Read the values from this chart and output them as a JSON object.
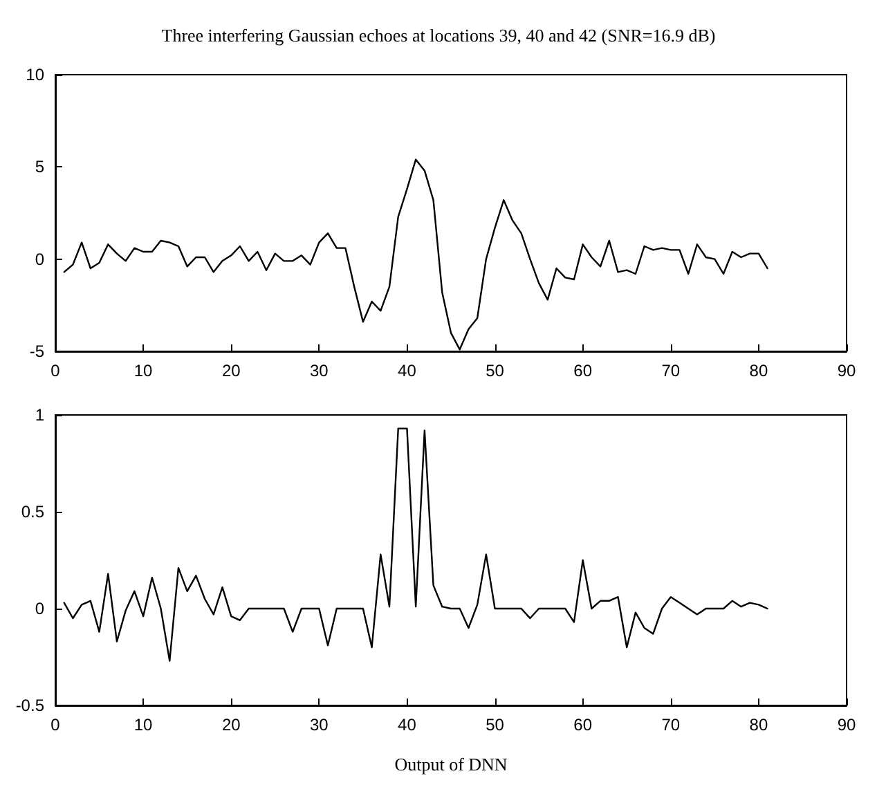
{
  "chart_data": [
    {
      "type": "line",
      "title": "Three interfering Gaussian echoes at locations 39, 40 and 42 (SNR=16.9 dB)",
      "x": [
        1,
        2,
        3,
        4,
        5,
        6,
        7,
        8,
        9,
        10,
        11,
        12,
        13,
        14,
        15,
        16,
        17,
        18,
        19,
        20,
        21,
        22,
        23,
        24,
        25,
        26,
        27,
        28,
        29,
        30,
        31,
        32,
        33,
        34,
        35,
        36,
        37,
        38,
        39,
        40,
        41,
        42,
        43,
        44,
        45,
        46,
        47,
        48,
        49,
        50,
        51,
        52,
        53,
        54,
        55,
        56,
        57,
        58,
        59,
        60,
        61,
        62,
        63,
        64,
        65,
        66,
        67,
        68,
        69,
        70,
        71,
        72,
        73,
        74,
        75,
        76,
        77,
        78,
        79,
        80,
        81
      ],
      "series": [
        {
          "color": "#000000",
          "values": [
            -0.7,
            -0.3,
            0.9,
            -0.5,
            -0.2,
            0.8,
            0.3,
            -0.1,
            0.6,
            0.4,
            0.4,
            1.0,
            0.9,
            0.7,
            -0.4,
            0.1,
            0.1,
            -0.7,
            -0.1,
            0.2,
            0.7,
            -0.1,
            0.4,
            -0.6,
            0.3,
            -0.1,
            -0.1,
            0.2,
            -0.3,
            0.9,
            1.4,
            0.6,
            0.6,
            -1.5,
            -3.4,
            -2.3,
            -2.8,
            -1.5,
            2.3,
            3.8,
            5.4,
            4.8,
            3.2,
            -1.8,
            -4.0,
            -4.9,
            -3.8,
            -3.2,
            0.0,
            1.7,
            3.2,
            2.1,
            1.4,
            0.0,
            -1.3,
            -2.2,
            -0.5,
            -1.0,
            -1.1,
            0.8,
            0.1,
            -0.4,
            1.0,
            -0.7,
            -0.6,
            -0.8,
            0.7,
            0.5,
            0.6,
            0.5,
            0.5,
            -0.8,
            0.8,
            0.1,
            0.0,
            -0.8,
            0.4,
            0.1,
            0.3,
            0.3,
            -0.5
          ]
        }
      ],
      "xlim": [
        0,
        90
      ],
      "xticks": [
        0,
        10,
        20,
        30,
        40,
        50,
        60,
        70,
        80,
        90
      ],
      "ylim": [
        -5,
        10
      ],
      "yticks": [
        -5,
        0,
        5,
        10
      ],
      "grid": false,
      "marker": "none",
      "line_style": "solid"
    },
    {
      "type": "line",
      "xlabel": "Output of DNN",
      "x": [
        1,
        2,
        3,
        4,
        5,
        6,
        7,
        8,
        9,
        10,
        11,
        12,
        13,
        14,
        15,
        16,
        17,
        18,
        19,
        20,
        21,
        22,
        23,
        24,
        25,
        26,
        27,
        28,
        29,
        30,
        31,
        32,
        33,
        34,
        35,
        36,
        37,
        38,
        39,
        40,
        41,
        42,
        43,
        44,
        45,
        46,
        47,
        48,
        49,
        50,
        51,
        52,
        53,
        54,
        55,
        56,
        57,
        58,
        59,
        60,
        61,
        62,
        63,
        64,
        65,
        66,
        67,
        68,
        69,
        70,
        71,
        72,
        73,
        74,
        75,
        76,
        77,
        78,
        79,
        80,
        81
      ],
      "series": [
        {
          "color": "#000000",
          "values": [
            0.03,
            -0.05,
            0.02,
            0.04,
            -0.12,
            0.18,
            -0.17,
            -0.01,
            0.09,
            -0.04,
            0.16,
            0.0,
            -0.27,
            0.21,
            0.09,
            0.17,
            0.05,
            -0.03,
            0.11,
            -0.04,
            -0.06,
            0.0,
            0.0,
            0.0,
            0.0,
            0.0,
            -0.12,
            0.0,
            0.0,
            0.0,
            -0.19,
            0.0,
            0.0,
            0.0,
            0.0,
            -0.2,
            0.28,
            0.01,
            0.93,
            0.93,
            0.01,
            0.92,
            0.12,
            0.01,
            0.0,
            0.0,
            -0.1,
            0.02,
            0.28,
            0.0,
            0.0,
            0.0,
            0.0,
            -0.05,
            0.0,
            0.0,
            0.0,
            0.0,
            -0.07,
            0.25,
            0.0,
            0.04,
            0.04,
            0.06,
            -0.2,
            -0.02,
            -0.1,
            -0.13,
            0.0,
            0.06,
            0.03,
            0.0,
            -0.03,
            0.0,
            0.0,
            0.0,
            0.04,
            0.01,
            0.03,
            0.02,
            0.0
          ]
        }
      ],
      "xlim": [
        0,
        90
      ],
      "xticks": [
        0,
        10,
        20,
        30,
        40,
        50,
        60,
        70,
        80,
        90
      ],
      "ylim": [
        -0.5,
        1
      ],
      "yticks": [
        -0.5,
        0,
        0.5,
        1
      ],
      "grid": false,
      "marker": "none",
      "line_style": "solid"
    }
  ]
}
